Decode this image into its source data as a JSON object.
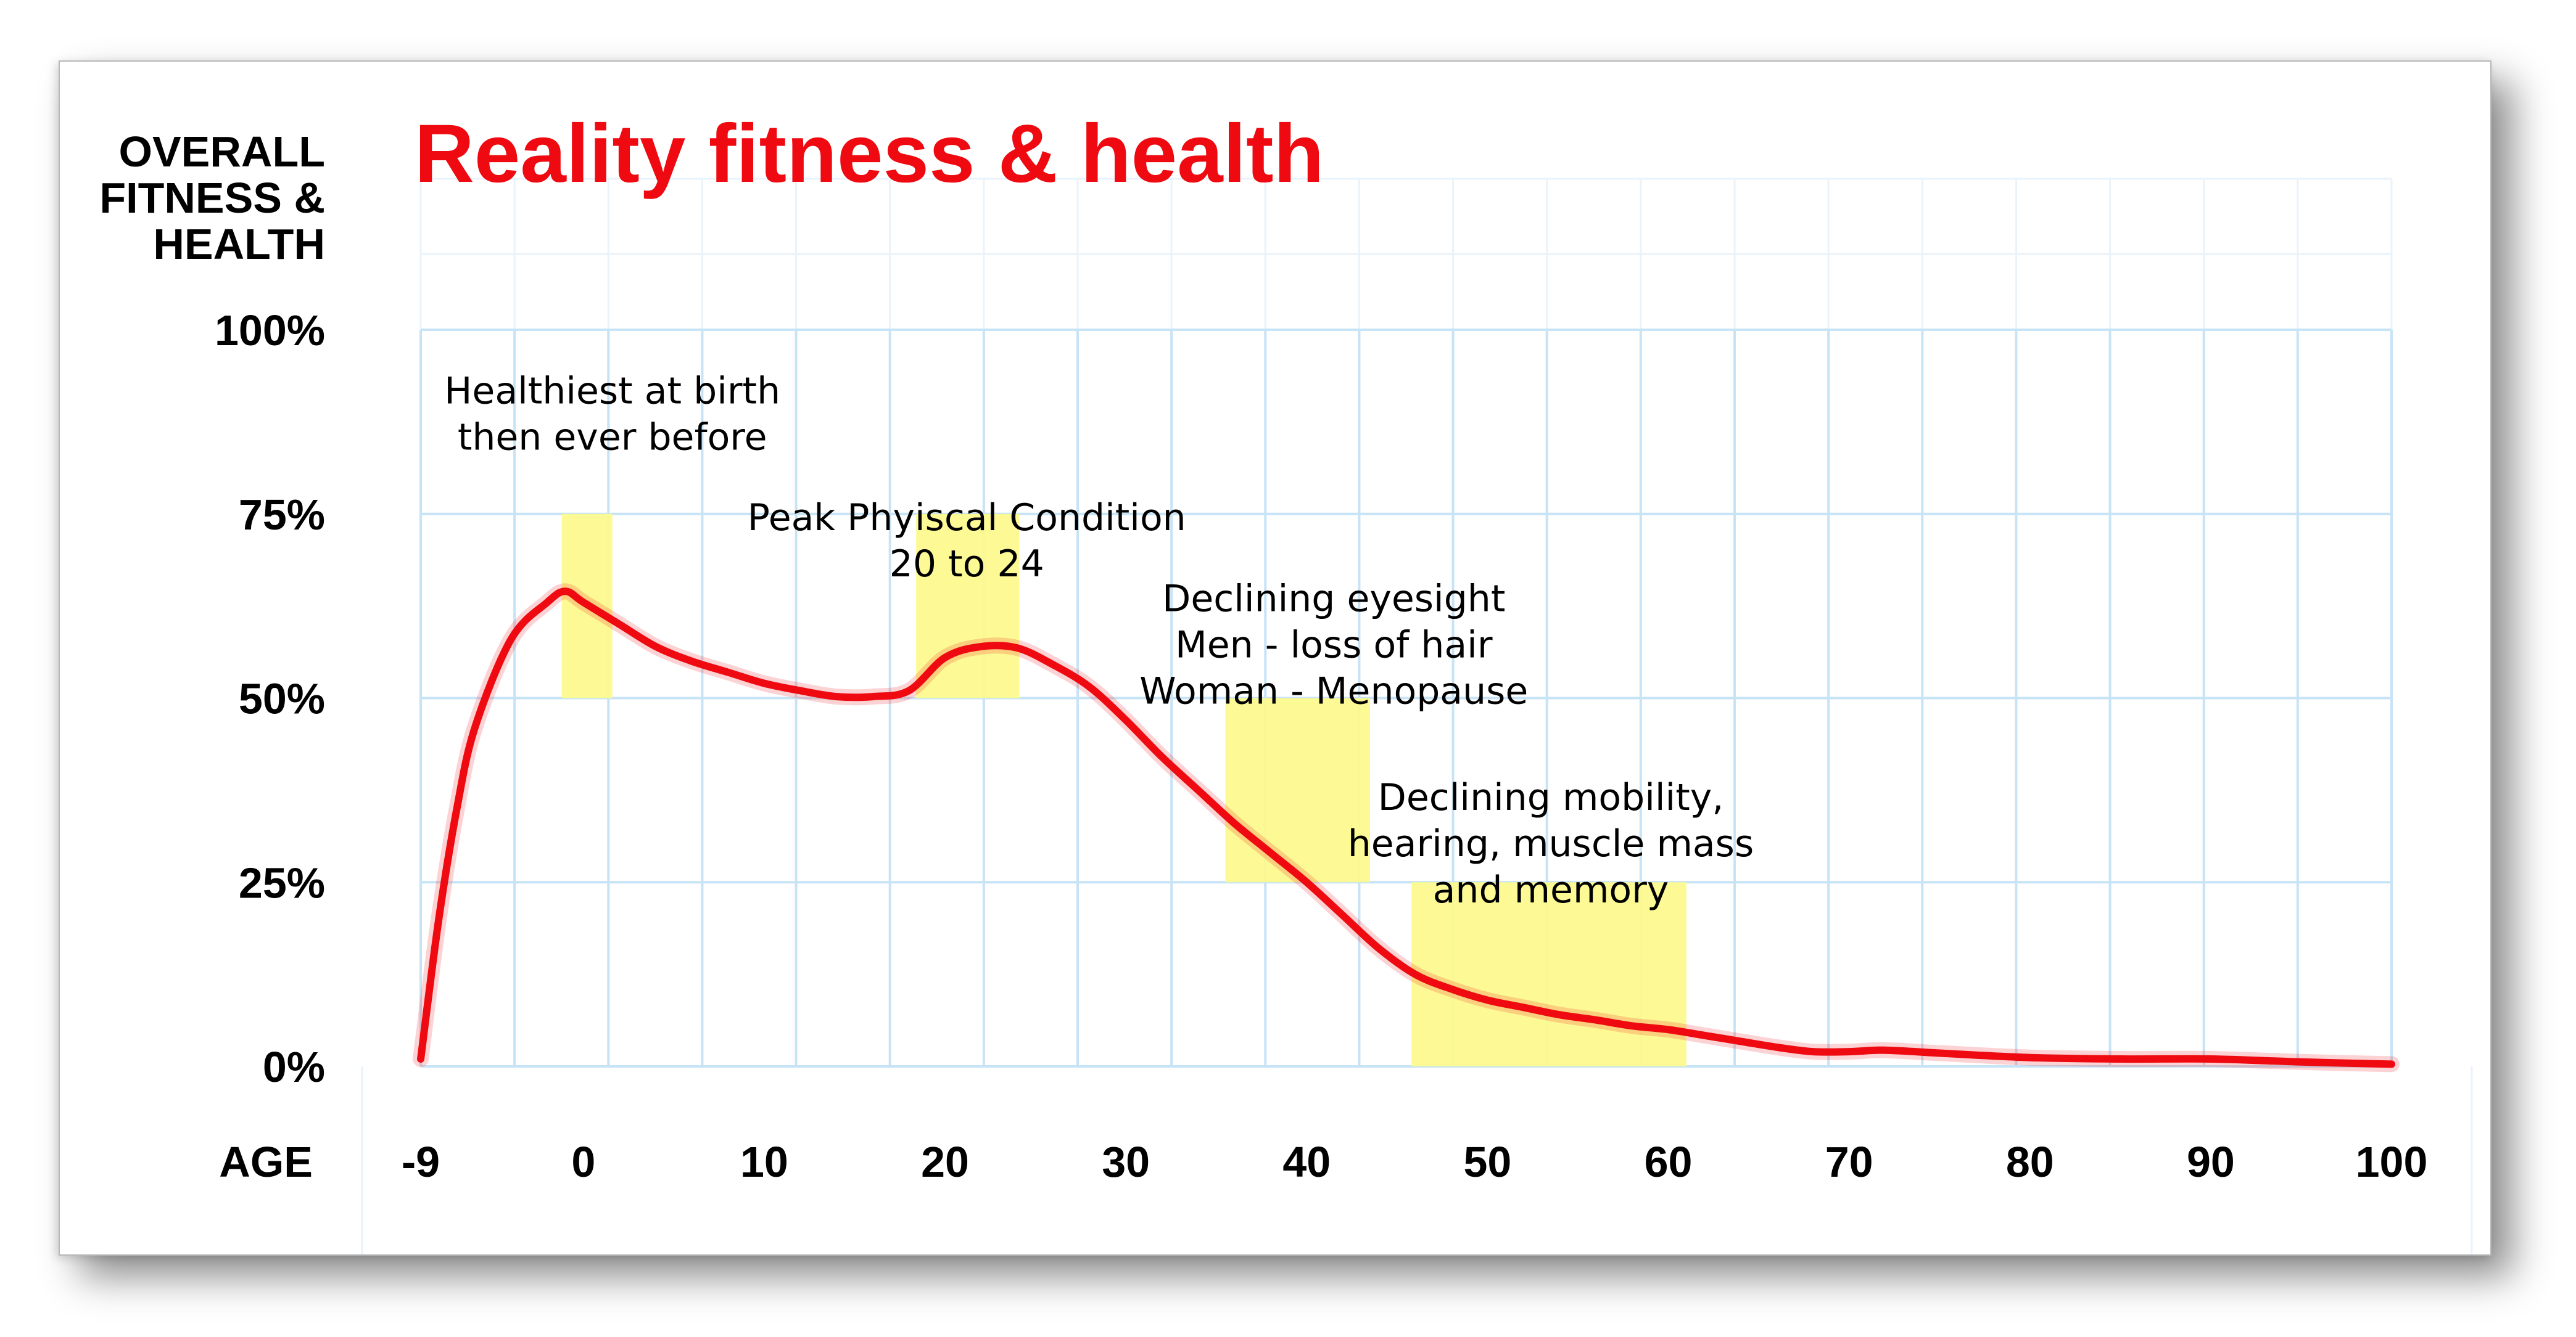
{
  "chart_data": {
    "type": "line",
    "title": "Reality fitness & health",
    "ylabel_lines": [
      "OVERALL",
      "FITNESS &",
      "HEALTH"
    ],
    "xlabel": "AGE",
    "xlim": [
      -9,
      100
    ],
    "ylim": [
      0,
      100
    ],
    "grid": true,
    "x_ticks": [
      -9,
      0,
      10,
      20,
      30,
      40,
      50,
      60,
      70,
      80,
      90,
      100
    ],
    "x_tick_labels": [
      "-9",
      "0",
      "10",
      "20",
      "30",
      "40",
      "50",
      "60",
      "70",
      "80",
      "90",
      "100"
    ],
    "y_ticks": [
      0,
      25,
      50,
      75,
      100
    ],
    "y_tick_labels": [
      "0%",
      "25%",
      "50%",
      "75%",
      "100%"
    ],
    "series": [
      {
        "color": "#ee0a10",
        "x": [
          -9,
          -8,
          -7,
          -6,
          -4,
          -2,
          -1,
          0,
          2,
          4,
          6,
          8,
          10,
          12,
          14,
          16,
          18,
          20,
          22,
          24,
          26,
          28,
          30,
          32,
          34,
          36,
          38,
          40,
          42,
          44,
          46,
          48,
          50,
          52,
          54,
          56,
          58,
          60,
          62,
          64,
          66,
          68,
          70,
          72,
          75,
          80,
          85,
          90,
          95,
          100
        ],
        "y": [
          1,
          20,
          35,
          46,
          58,
          63,
          64.5,
          63,
          60,
          57,
          55,
          53.5,
          52,
          51,
          50.2,
          50.2,
          51,
          55.5,
          57,
          56.8,
          54.5,
          51.5,
          47,
          42,
          37.5,
          33,
          29,
          25,
          20.5,
          16,
          12.5,
          10.5,
          9,
          8,
          7,
          6.3,
          5.5,
          5,
          4.2,
          3.4,
          2.6,
          2,
          2,
          2.2,
          1.8,
          1.2,
          1,
          1,
          0.6,
          0.3
        ]
      }
    ],
    "highlights": [
      {
        "x": [
          -1.2,
          1.6
        ],
        "y": [
          50,
          75
        ],
        "color": "#fdf98a"
      },
      {
        "x": [
          18.4,
          24.1
        ],
        "y": [
          50,
          75
        ],
        "color": "#fdf98a"
      },
      {
        "x": [
          35.5,
          43.5
        ],
        "y": [
          25,
          50
        ],
        "color": "#fdf98a"
      },
      {
        "x": [
          45.8,
          61
        ],
        "y": [
          0,
          25
        ],
        "color": "#fdf98a"
      }
    ],
    "annotations": [
      {
        "lines": [
          "Healthiest at birth",
          "then ever before"
        ],
        "x": 1.6,
        "y": 90
      },
      {
        "lines": [
          "Peak Phyiscal Condition",
          "20 to 24"
        ],
        "x": 21.2,
        "y": 72.8
      },
      {
        "lines": [
          "Declining eyesight",
          "Men - loss of hair",
          "Woman - Menopause"
        ],
        "x": 41.5,
        "y": 61.8
      },
      {
        "lines": [
          "Declining mobility,",
          "hearing, muscle mass",
          "and memory"
        ],
        "x": 53.5,
        "y": 34.8
      }
    ]
  }
}
